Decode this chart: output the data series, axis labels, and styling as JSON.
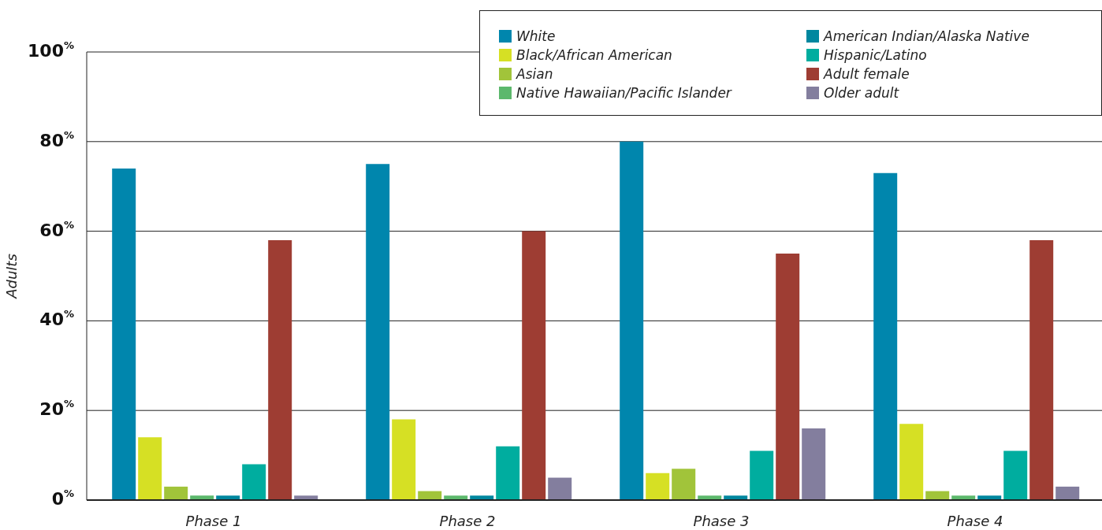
{
  "chart_data": {
    "type": "bar",
    "ylabel": "Adults",
    "categories": [
      "Phase 1",
      "Phase 2",
      "Phase 3",
      "Phase 4"
    ],
    "series": [
      {
        "name": "White",
        "color": "#0086ad",
        "values": [
          74,
          75,
          80,
          73
        ]
      },
      {
        "name": "Black/African American",
        "color": "#d6e024",
        "values": [
          14,
          18,
          6,
          17
        ]
      },
      {
        "name": "Asian",
        "color": "#a1c43a",
        "values": [
          3,
          2,
          7,
          2
        ]
      },
      {
        "name": "Native Hawaiian/Pacific Islander",
        "color": "#5cb86c",
        "values": [
          1,
          1,
          1,
          1
        ]
      },
      {
        "name": "American Indian/Alaska Native",
        "color": "#00879f",
        "values": [
          1,
          1,
          1,
          1
        ]
      },
      {
        "name": "Hispanic/Latino",
        "color": "#00ad9f",
        "values": [
          8,
          12,
          11,
          11
        ]
      },
      {
        "name": "Adult female",
        "color": "#9e3d33",
        "values": [
          58,
          60,
          55,
          58
        ]
      },
      {
        "name": "Older adult",
        "color": "#837e9e",
        "values": [
          1,
          5,
          16,
          3
        ]
      }
    ],
    "ylim": [
      0,
      100
    ],
    "yticks": [
      {
        "value": 0,
        "label": "0$^{%}$"
      },
      {
        "value": 20,
        "label": "20$^{%}$"
      },
      {
        "value": 40,
        "label": "40$^{%}$"
      },
      {
        "value": 60,
        "label": "60$^{%}$"
      },
      {
        "value": 80,
        "label": "80$^{%}$"
      },
      {
        "value": 100,
        "label": "100$^{%}$"
      }
    ],
    "grid": "y",
    "legend": "top right"
  }
}
